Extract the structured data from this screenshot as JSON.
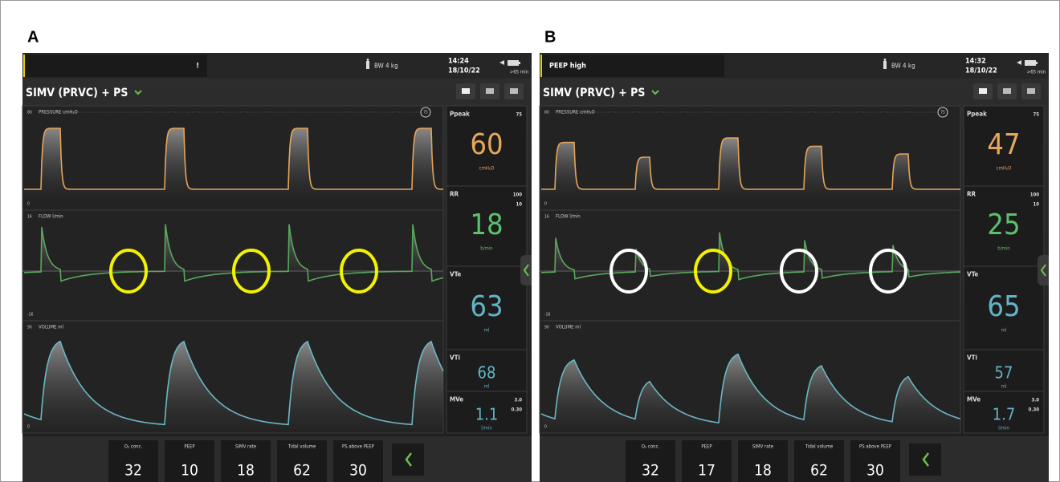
{
  "panels": [
    {
      "label": "A",
      "alarm": "!",
      "body_weight": "BW 4 kg",
      "time": "14:24",
      "date": "18/10/22",
      "battery": ">65 min",
      "mode": "SIMV (PRVC) + PS",
      "waveforms": [
        {
          "title": "PRESSURE cmH₂O",
          "top": "80",
          "bottom": "0",
          "limit": "75"
        },
        {
          "title": "FLOW l/min",
          "top": "16",
          "bottom": "-16"
        },
        {
          "title": "VOLUME ml",
          "top": "90",
          "bottom": "0"
        }
      ],
      "readouts": [
        {
          "name": "Ppeak",
          "high": "75",
          "value": "60",
          "unit": "cmH₂O"
        },
        {
          "name": "RR",
          "high": "100",
          "low": "10",
          "value": "18",
          "unit": "b/min"
        },
        {
          "name": "VTe",
          "value": "63",
          "unit": "ml"
        },
        {
          "name": "VTi",
          "value": "68",
          "unit": "ml"
        },
        {
          "name": "MVe",
          "high": "3.0",
          "low": "0.30",
          "value": "1.1",
          "unit": "l/min"
        }
      ],
      "settings": [
        {
          "label": "O₂ conc.",
          "value": "32"
        },
        {
          "label": "PEEP",
          "value": "10"
        },
        {
          "label": "SIMV rate",
          "value": "18"
        },
        {
          "label": "Tidal volume",
          "value": "62"
        },
        {
          "label": "PS above PEEP",
          "value": "30"
        }
      ]
    },
    {
      "label": "B",
      "alarm": "PEEP high",
      "body_weight": "BW 4 kg",
      "time": "14:32",
      "date": "18/10/22",
      "battery": ">65 min",
      "mode": "SIMV (PRVC) + PS",
      "waveforms": [
        {
          "title": "PRESSURE cmH₂O",
          "top": "80",
          "bottom": "0",
          "limit": "75"
        },
        {
          "title": "FLOW l/min",
          "top": "16",
          "bottom": "-16"
        },
        {
          "title": "VOLUME ml",
          "top": "90",
          "bottom": "0"
        }
      ],
      "readouts": [
        {
          "name": "Ppeak",
          "high": "75",
          "value": "47",
          "unit": "cmH₂O"
        },
        {
          "name": "RR",
          "high": "100",
          "low": "10",
          "value": "25",
          "unit": "b/min"
        },
        {
          "name": "VTe",
          "value": "65",
          "unit": "ml"
        },
        {
          "name": "VTi",
          "value": "57",
          "unit": "ml"
        },
        {
          "name": "MVe",
          "high": "3.0",
          "low": "0.30",
          "value": "1.7",
          "unit": "l/min"
        }
      ],
      "settings": [
        {
          "label": "O₂ conc.",
          "value": "32"
        },
        {
          "label": "PEEP",
          "value": "17"
        },
        {
          "label": "SIMV rate",
          "value": "18"
        },
        {
          "label": "Tidal volume",
          "value": "62"
        },
        {
          "label": "PS above PEEP",
          "value": "30"
        }
      ]
    }
  ]
}
